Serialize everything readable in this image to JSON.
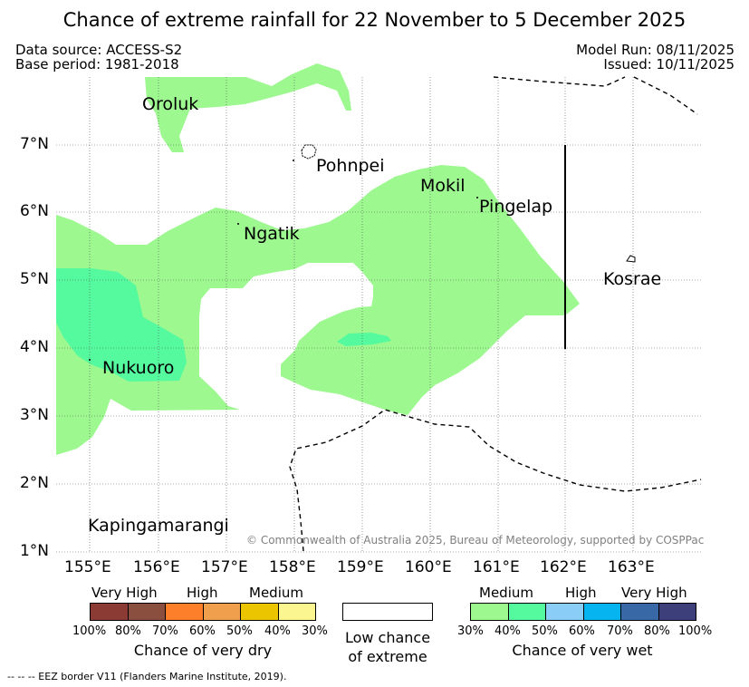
{
  "title": "Chance of extreme rainfall for 22 November to 5 December 2025",
  "meta": {
    "data_source": "Data source: ACCESS-S2",
    "base_period": "Base period: 1981-2018",
    "model_run": "Model Run: 08/11/2025",
    "issued": "Issued: 10/11/2025"
  },
  "map": {
    "lat_labels": [
      "7°N",
      "6°N",
      "5°N",
      "4°N",
      "3°N",
      "2°N",
      "1°N"
    ],
    "lon_labels": [
      "155°E",
      "156°E",
      "157°E",
      "158°E",
      "159°E",
      "160°E",
      "161°E",
      "162°E",
      "163°E"
    ],
    "places": {
      "oroluk": "Oroluk",
      "pohnpei": "Pohnpei",
      "mokil": "Mokil",
      "pingelap": "Pingelap",
      "ngatik": "Ngatik",
      "kosrae": "Kosrae",
      "nukuoro": "Nukuoro",
      "kapingamarangi": "Kapingamarangi"
    },
    "copyright": "© Commonwealth of Australia 2025, Bureau of Meteorology, supported by COSPPac",
    "colors": {
      "wet_30_40": "#9cf88f",
      "wet_40_50": "#55fa9f"
    }
  },
  "legend": {
    "dry": {
      "categories": [
        "Very High",
        "High",
        "Medium"
      ],
      "percent_labels": [
        "100%",
        "80%",
        "70%",
        "60%",
        "50%",
        "40%",
        "30%"
      ],
      "colors": [
        "#8c3b34",
        "#8b4f40",
        "#fe7f29",
        "#f0a04c",
        "#ebc500",
        "#fcf690"
      ],
      "caption": "Chance of very dry"
    },
    "neutral": {
      "caption_line1": "Low chance",
      "caption_line2": "of extreme",
      "color": "#ffffff"
    },
    "wet": {
      "categories": [
        "Medium",
        "High",
        "Very High"
      ],
      "percent_labels": [
        "30%",
        "40%",
        "50%",
        "60%",
        "70%",
        "80%",
        "100%"
      ],
      "colors": [
        "#9cf88f",
        "#55fa9f",
        "#8acef7",
        "#06b5ef",
        "#3968a6",
        "#3d3f7b"
      ],
      "caption": "Chance of very wet"
    }
  },
  "footer": "--  --  -- EEZ border V11 (Flanders Marine Institute, 2019)."
}
